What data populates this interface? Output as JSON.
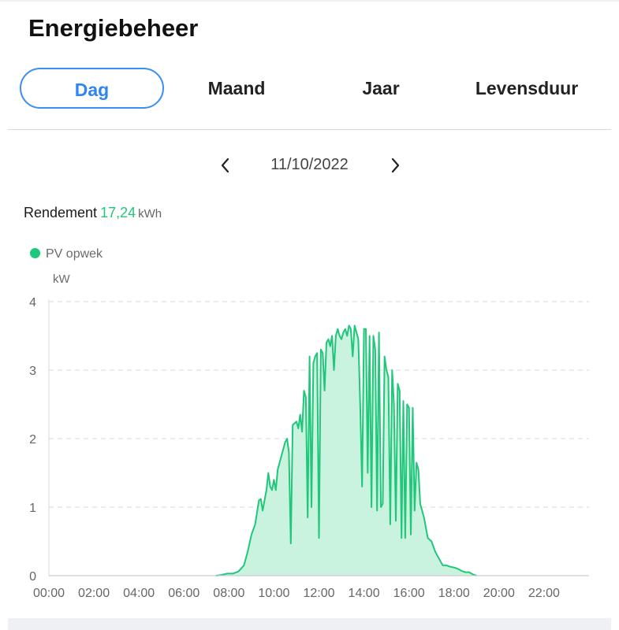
{
  "page": {
    "title": "Energiebeheer"
  },
  "tabs": [
    {
      "label": "Dag",
      "active": true
    },
    {
      "label": "Maand",
      "active": false
    },
    {
      "label": "Jaar",
      "active": false
    },
    {
      "label": "Levensduur",
      "active": false
    }
  ],
  "date_nav": {
    "date": "11/10/2022",
    "prev_icon": "chevron-left-icon",
    "next_icon": "chevron-right-icon"
  },
  "summary": {
    "label": "Rendement",
    "value": "17,24",
    "unit": "kWh"
  },
  "colors": {
    "accent_green": "#20c77a",
    "active_tab_blue": "#2f86f0",
    "area_fill": "#c9f3de"
  },
  "chart_data": {
    "type": "area",
    "legend": [
      "PV opwek"
    ],
    "ylabel": "kW",
    "ylim": [
      0,
      4
    ],
    "yticks": [
      "0",
      "1",
      "2",
      "3",
      "4"
    ],
    "xticks": [
      "00:00",
      "02:00",
      "04:00",
      "06:00",
      "08:00",
      "10:00",
      "12:00",
      "14:00",
      "16:00",
      "18:00",
      "20:00",
      "22:00"
    ],
    "xlim": [
      "00:00",
      "24:00"
    ],
    "grid": "horizontal-dashed",
    "series": [
      {
        "name": "PV opwek",
        "color": "#20c77a",
        "points": [
          [
            "07:25",
            0
          ],
          [
            "07:40",
            0.01
          ],
          [
            "07:55",
            0.03
          ],
          [
            "08:10",
            0.03
          ],
          [
            "08:25",
            0.06
          ],
          [
            "08:40",
            0.15
          ],
          [
            "08:50",
            0.35
          ],
          [
            "09:00",
            0.6
          ],
          [
            "09:10",
            0.75
          ],
          [
            "09:20",
            1.1
          ],
          [
            "09:25",
            1.12
          ],
          [
            "09:30",
            0.95
          ],
          [
            "09:40",
            1.25
          ],
          [
            "09:45",
            1.5
          ],
          [
            "09:50",
            1.3
          ],
          [
            "09:55",
            1.25
          ],
          [
            "10:00",
            1.4
          ],
          [
            "10:05",
            1.25
          ],
          [
            "10:10",
            1.55
          ],
          [
            "10:20",
            1.75
          ],
          [
            "10:30",
            1.95
          ],
          [
            "10:35",
            2.0
          ],
          [
            "10:40",
            1.8
          ],
          [
            "10:45",
            0.47
          ],
          [
            "10:50",
            2.2
          ],
          [
            "11:00",
            2.25
          ],
          [
            "11:05",
            2.15
          ],
          [
            "11:10",
            2.35
          ],
          [
            "11:15",
            2.1
          ],
          [
            "11:20",
            2.7
          ],
          [
            "11:25",
            2.6
          ],
          [
            "11:30",
            0.85
          ],
          [
            "11:35",
            3.2
          ],
          [
            "11:40",
            1.0
          ],
          [
            "11:45",
            3.1
          ],
          [
            "11:50",
            3.2
          ],
          [
            "11:55",
            3.25
          ],
          [
            "12:00",
            0.55
          ],
          [
            "12:05",
            3.3
          ],
          [
            "12:10",
            3.25
          ],
          [
            "12:15",
            2.7
          ],
          [
            "12:20",
            3.4
          ],
          [
            "12:25",
            3.45
          ],
          [
            "12:30",
            3.35
          ],
          [
            "12:35",
            3.5
          ],
          [
            "12:40",
            3.0
          ],
          [
            "12:45",
            3.5
          ],
          [
            "12:50",
            3.6
          ],
          [
            "12:55",
            3.5
          ],
          [
            "13:00",
            3.45
          ],
          [
            "13:05",
            3.55
          ],
          [
            "13:10",
            3.6
          ],
          [
            "13:15",
            3.5
          ],
          [
            "13:20",
            3.65
          ],
          [
            "13:25",
            3.6
          ],
          [
            "13:30",
            3.2
          ],
          [
            "13:35",
            3.65
          ],
          [
            "13:40",
            3.55
          ],
          [
            "13:45",
            3.45
          ],
          [
            "13:50",
            2.5
          ],
          [
            "13:55",
            1.3
          ],
          [
            "14:00",
            3.6
          ],
          [
            "14:05",
            3.6
          ],
          [
            "14:10",
            1.5
          ],
          [
            "14:15",
            3.5
          ],
          [
            "14:20",
            1.0
          ],
          [
            "14:25",
            3.5
          ],
          [
            "14:30",
            3.3
          ],
          [
            "14:35",
            0.95
          ],
          [
            "14:40",
            3.55
          ],
          [
            "14:45",
            1.0
          ],
          [
            "14:50",
            1.05
          ],
          [
            "14:55",
            3.2
          ],
          [
            "15:00",
            3.0
          ],
          [
            "15:05",
            2.9
          ],
          [
            "15:10",
            0.75
          ],
          [
            "15:15",
            3.0
          ],
          [
            "15:20",
            2.5
          ],
          [
            "15:25",
            0.8
          ],
          [
            "15:30",
            2.8
          ],
          [
            "15:35",
            2.7
          ],
          [
            "15:40",
            0.55
          ],
          [
            "15:45",
            2.55
          ],
          [
            "15:50",
            0.55
          ],
          [
            "15:55",
            2.5
          ],
          [
            "16:00",
            2.45
          ],
          [
            "16:05",
            0.6
          ],
          [
            "16:10",
            2.45
          ],
          [
            "16:15",
            0.95
          ],
          [
            "16:20",
            1.65
          ],
          [
            "16:25",
            1.55
          ],
          [
            "16:30",
            1.05
          ],
          [
            "16:35",
            0.95
          ],
          [
            "16:40",
            0.85
          ],
          [
            "16:50",
            0.55
          ],
          [
            "17:00",
            0.5
          ],
          [
            "17:10",
            0.35
          ],
          [
            "17:20",
            0.25
          ],
          [
            "17:30",
            0.15
          ],
          [
            "17:40",
            0.15
          ],
          [
            "17:50",
            0.13
          ],
          [
            "18:00",
            0.12
          ],
          [
            "18:10",
            0.1
          ],
          [
            "18:20",
            0.07
          ],
          [
            "18:30",
            0.05
          ],
          [
            "18:40",
            0.05
          ],
          [
            "18:50",
            0.02
          ],
          [
            "19:00",
            0
          ]
        ]
      }
    ]
  }
}
